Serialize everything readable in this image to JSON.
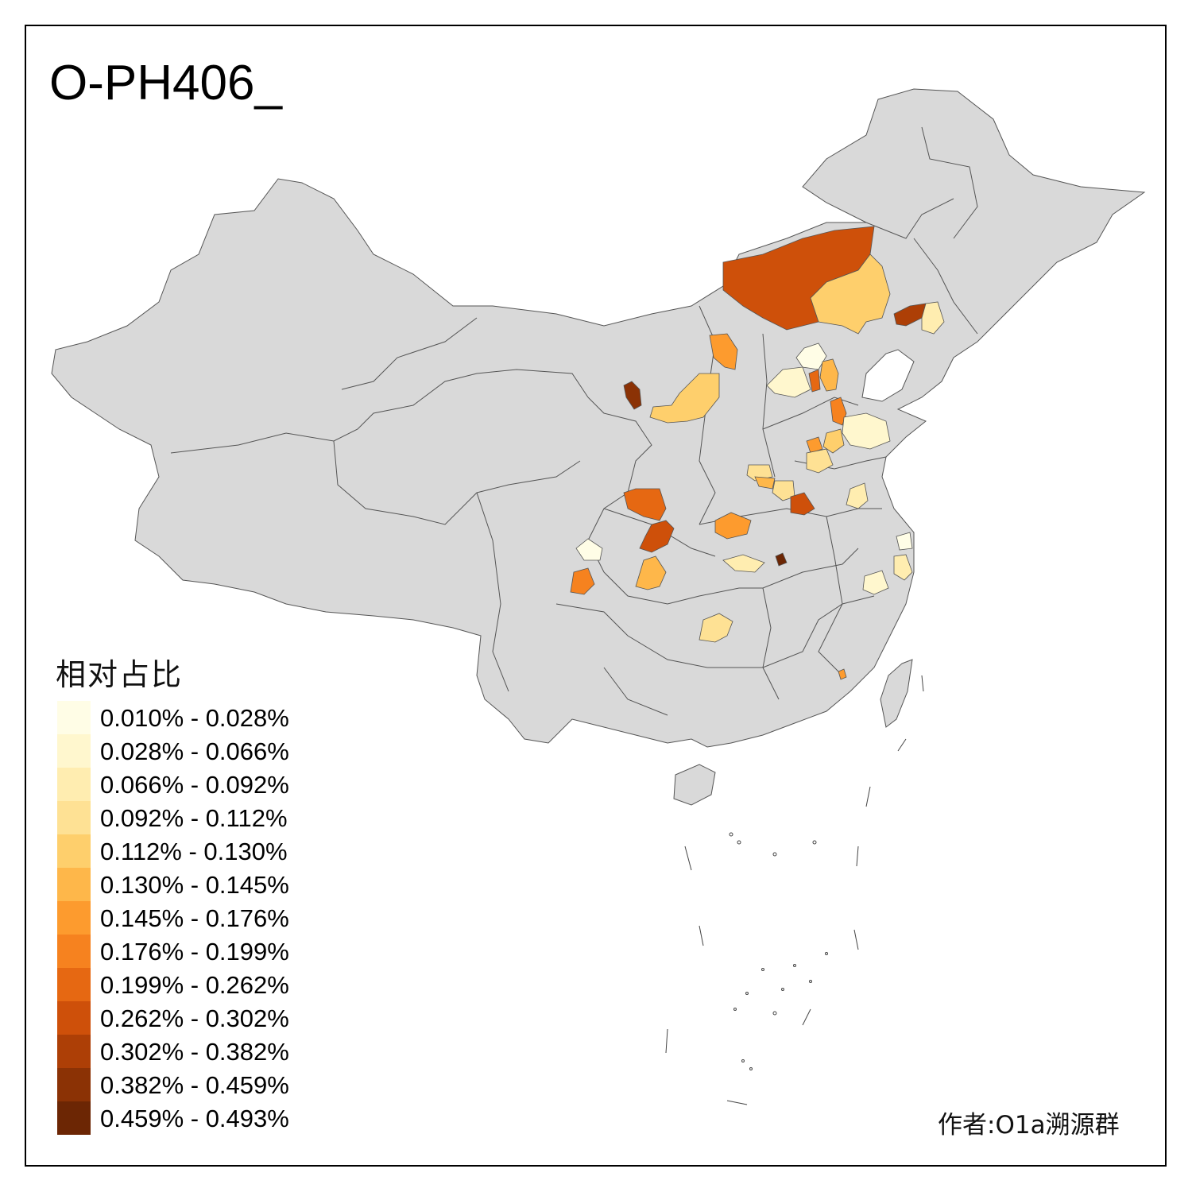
{
  "title": "O-PH406_",
  "legend": {
    "title": "相对占比",
    "items": [
      {
        "label": "0.010% - 0.028%",
        "color": "#FFFDE6"
      },
      {
        "label": "0.028% - 0.066%",
        "color": "#FFF7CE"
      },
      {
        "label": "0.066% - 0.092%",
        "color": "#FFEDB0"
      },
      {
        "label": "0.092% - 0.112%",
        "color": "#FEE194"
      },
      {
        "label": "0.112% - 0.130%",
        "color": "#FECF6C"
      },
      {
        "label": "0.130% - 0.145%",
        "color": "#FEB74A"
      },
      {
        "label": "0.145% - 0.176%",
        "color": "#FD9B2E"
      },
      {
        "label": "0.176% - 0.199%",
        "color": "#F6821F"
      },
      {
        "label": "0.199% - 0.262%",
        "color": "#E66812"
      },
      {
        "label": "0.262% - 0.302%",
        "color": "#CE500A"
      },
      {
        "label": "0.302% - 0.382%",
        "color": "#AD3F06"
      },
      {
        "label": "0.382% - 0.459%",
        "color": "#8B3205"
      },
      {
        "label": "0.459% - 0.493%",
        "color": "#6C2604"
      }
    ]
  },
  "author": "作者:O1a溯源群",
  "colors": {
    "land": "#D9D9D9",
    "border": "#555555"
  }
}
